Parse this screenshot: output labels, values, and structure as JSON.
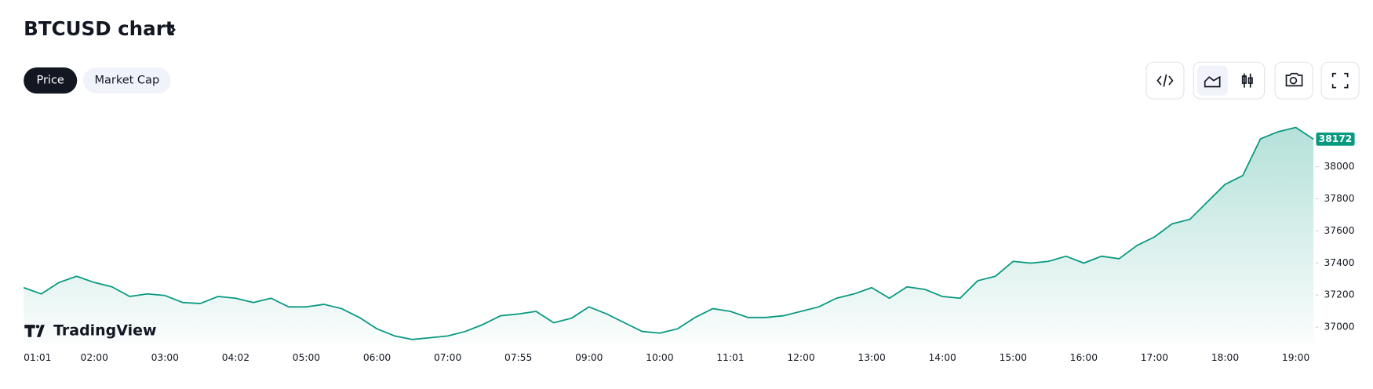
{
  "ui": {
    "title": "BTCUSD chart",
    "tabs": [
      "Price",
      "Market Cap"
    ],
    "logo": "TradingView"
  },
  "chart_data": {
    "type": "area",
    "color": "#089981",
    "categories": [
      "01:01",
      null,
      null,
      null,
      "02:00",
      null,
      null,
      null,
      "03:00",
      null,
      null,
      null,
      "04:02",
      null,
      null,
      null,
      "05:00",
      null,
      null,
      null,
      "06:00",
      null,
      null,
      null,
      "07:00",
      null,
      null,
      null,
      "07:55",
      null,
      null,
      null,
      "09:00",
      null,
      null,
      null,
      "10:00",
      null,
      null,
      null,
      "11:01",
      null,
      null,
      null,
      "12:00",
      null,
      null,
      null,
      "13:00",
      null,
      null,
      null,
      "14:00",
      null,
      null,
      null,
      "15:00",
      null,
      null,
      null,
      "16:00",
      null,
      null,
      null,
      "17:00",
      null,
      null,
      null,
      "18:00",
      null,
      null,
      null,
      "19:00",
      null
    ],
    "values": [
      37246,
      37207,
      37278,
      37317,
      37278,
      37251,
      37191,
      37207,
      37197,
      37153,
      37147,
      37191,
      37180,
      37153,
      37180,
      37126,
      37126,
      37142,
      37115,
      37060,
      36989,
      36945,
      36923,
      36934,
      36945,
      36973,
      37016,
      37071,
      37082,
      37098,
      37027,
      37055,
      37126,
      37082,
      37027,
      36973,
      36962,
      36989,
      37060,
      37115,
      37098,
      37060,
      37060,
      37071,
      37098,
      37126,
      37180,
      37207,
      37246,
      37180,
      37251,
      37235,
      37191,
      37180,
      37289,
      37317,
      37410,
      37399,
      37410,
      37442,
      37399,
      37442,
      37426,
      37508,
      37562,
      37644,
      37672,
      37781,
      37890,
      37945,
      38174,
      38218,
      38245,
      38172
    ],
    "last_price_label": "38172",
    "ylim": [
      36900,
      38330
    ],
    "yticks": [
      37000,
      37200,
      37400,
      37600,
      37800,
      38000
    ]
  }
}
